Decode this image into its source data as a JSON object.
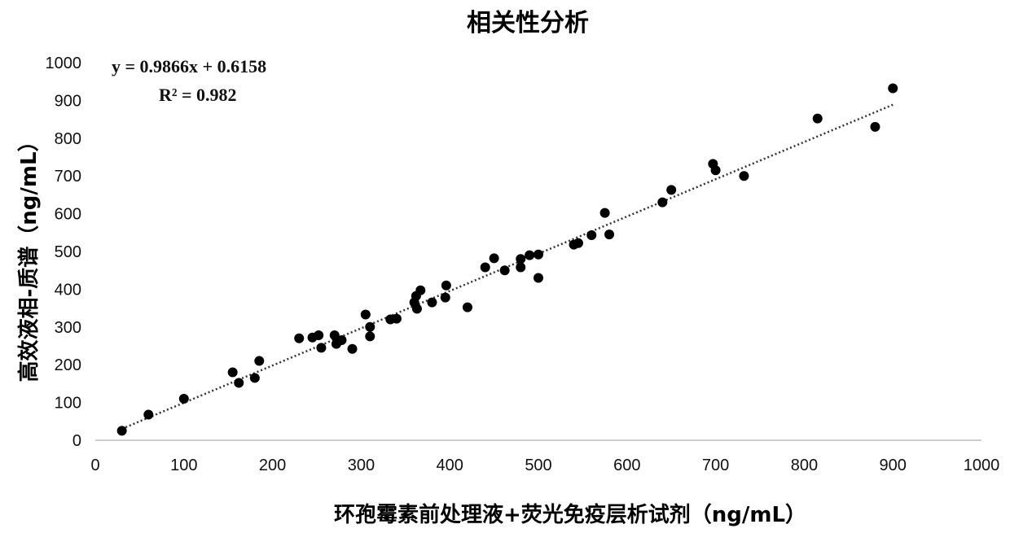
{
  "chart_data": {
    "type": "scatter",
    "title": "相关性分析",
    "xlabel": "环孢霉素前处理液+荧光免疫层析试剂（ng/mL）",
    "ylabel": "高效液相-质谱（ng/mL）",
    "xlim": [
      0,
      1000
    ],
    "ylim": [
      0,
      1000
    ],
    "xticks": [
      "0",
      "100",
      "200",
      "300",
      "400",
      "500",
      "600",
      "700",
      "800",
      "900",
      "1000"
    ],
    "yticks": [
      "0",
      "100",
      "200",
      "300",
      "400",
      "500",
      "600",
      "700",
      "800",
      "900",
      "1000"
    ],
    "grid": false,
    "legend": "none",
    "trendline": {
      "slope": 0.9866,
      "intercept": 0.6158,
      "x_range": [
        30,
        900
      ],
      "style": "dotted"
    },
    "annotations": {
      "equation": "y = 0.9866x + 0.6158",
      "r_squared": "R² = 0.982"
    },
    "marker_color": "#000000",
    "points": [
      [
        30,
        25
      ],
      [
        60,
        68
      ],
      [
        100,
        110
      ],
      [
        155,
        180
      ],
      [
        162,
        152
      ],
      [
        180,
        165
      ],
      [
        185,
        210
      ],
      [
        230,
        270
      ],
      [
        245,
        272
      ],
      [
        252,
        278
      ],
      [
        255,
        245
      ],
      [
        270,
        278
      ],
      [
        272,
        255
      ],
      [
        278,
        265
      ],
      [
        290,
        242
      ],
      [
        305,
        333
      ],
      [
        310,
        300
      ],
      [
        310,
        275
      ],
      [
        333,
        320
      ],
      [
        340,
        322
      ],
      [
        360,
        365
      ],
      [
        363,
        348
      ],
      [
        362,
        382
      ],
      [
        367,
        397
      ],
      [
        380,
        365
      ],
      [
        395,
        378
      ],
      [
        396,
        410
      ],
      [
        420,
        352
      ],
      [
        440,
        458
      ],
      [
        450,
        482
      ],
      [
        462,
        450
      ],
      [
        480,
        480
      ],
      [
        480,
        458
      ],
      [
        490,
        490
      ],
      [
        500,
        492
      ],
      [
        500,
        430
      ],
      [
        540,
        518
      ],
      [
        545,
        522
      ],
      [
        560,
        543
      ],
      [
        575,
        602
      ],
      [
        580,
        545
      ],
      [
        640,
        630
      ],
      [
        650,
        663
      ],
      [
        697,
        732
      ],
      [
        700,
        715
      ],
      [
        732,
        700
      ],
      [
        815,
        852
      ],
      [
        880,
        830
      ],
      [
        900,
        932
      ]
    ]
  }
}
